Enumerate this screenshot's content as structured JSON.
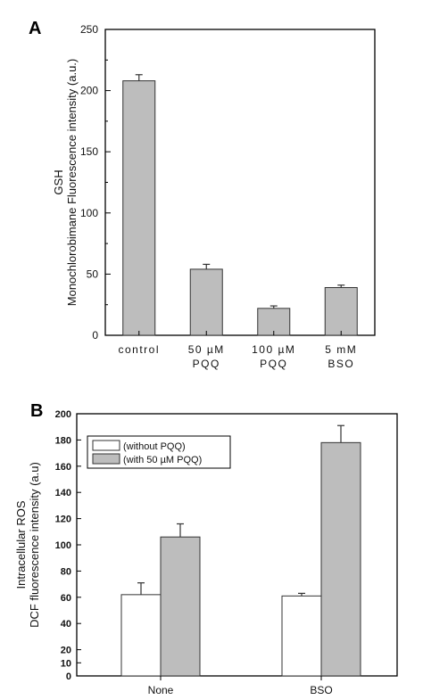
{
  "chart_data": [
    {
      "panel": "A",
      "type": "bar",
      "categories": [
        [
          "control"
        ],
        [
          "50  µM",
          "PQQ"
        ],
        [
          "100  µM",
          "PQQ"
        ],
        [
          "5 mM",
          "BSO"
        ]
      ],
      "values": [
        208,
        54,
        22,
        39
      ],
      "errors": [
        5,
        4,
        2,
        2
      ],
      "ylabel": [
        "GSH",
        "Monochlorobimane Fluorescence intensity (a.u.)"
      ],
      "ylim": [
        0,
        250
      ],
      "yticks": [
        0,
        50,
        100,
        150,
        200,
        250
      ],
      "bar_color": "#bdbdbd"
    },
    {
      "panel": "B",
      "type": "bar",
      "categories": [
        "None",
        "BSO"
      ],
      "series": [
        {
          "name": "(without PQQ)",
          "values": [
            62,
            61
          ],
          "errors": [
            9,
            2
          ],
          "color": "#ffffff"
        },
        {
          "name": "(with 50 µM PQQ)",
          "values": [
            106,
            178
          ],
          "errors": [
            10,
            13
          ],
          "color": "#bdbdbd"
        }
      ],
      "ylabel": [
        "Intracellular ROS",
        "DCF fluorescence intensity (a.u)"
      ],
      "ylim": [
        0,
        200
      ],
      "yticks": [
        0,
        10,
        20,
        40,
        60,
        80,
        100,
        120,
        140,
        160,
        180,
        200
      ],
      "legend": "top-left"
    }
  ]
}
